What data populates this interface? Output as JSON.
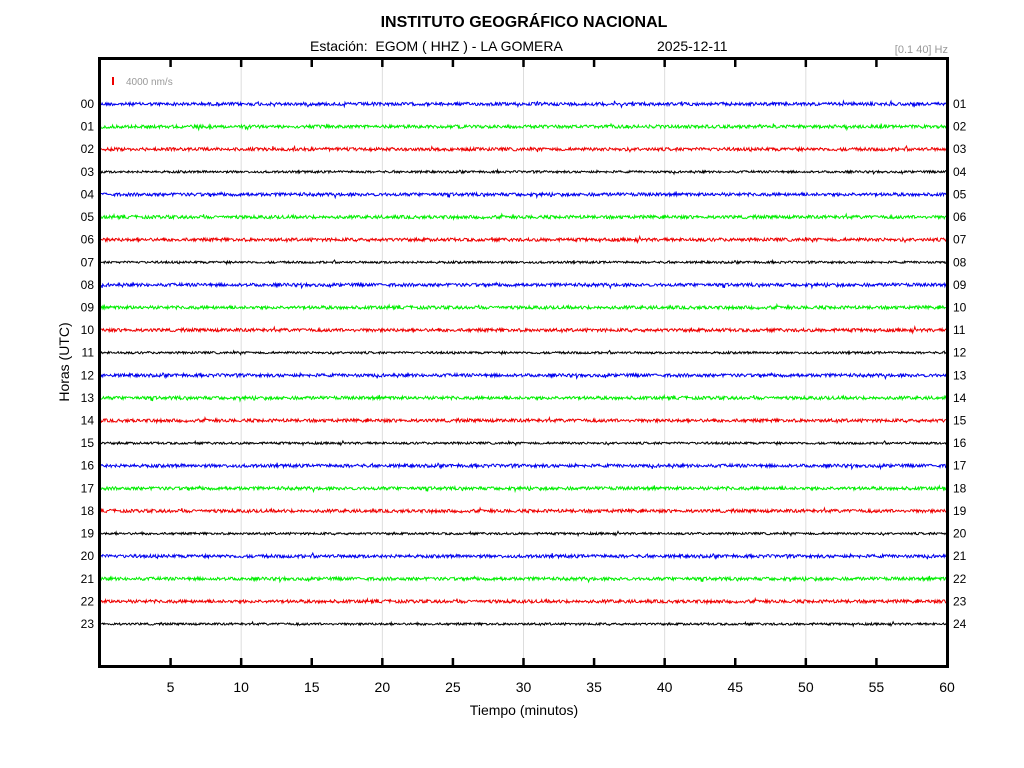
{
  "chart_data": {
    "type": "line",
    "title": "INSTITUTO GEOGRÁFICO NACIONAL",
    "subtitle_station": "Estación:  EGOM ( HHZ ) - LA GOMERA",
    "subtitle_date": "2025-12-11",
    "filter_label": "[0.1 40] Hz",
    "scale_label": "4000 nm/s",
    "xlabel": "Tiempo (minutos)",
    "ylabel": "Horas (UTC)",
    "xlim": [
      0,
      60
    ],
    "x_ticks": [
      5,
      10,
      15,
      20,
      25,
      30,
      35,
      40,
      45,
      50,
      55,
      60
    ],
    "x_major_grid": [
      10,
      20,
      30,
      40,
      50
    ],
    "left_hour_labels": [
      "00",
      "01",
      "02",
      "03",
      "04",
      "05",
      "06",
      "07",
      "08",
      "09",
      "10",
      "11",
      "12",
      "13",
      "14",
      "15",
      "16",
      "17",
      "18",
      "19",
      "20",
      "21",
      "22",
      "23"
    ],
    "right_hour_labels": [
      "01",
      "02",
      "03",
      "04",
      "05",
      "06",
      "07",
      "08",
      "09",
      "10",
      "11",
      "12",
      "13",
      "14",
      "15",
      "16",
      "17",
      "18",
      "19",
      "20",
      "21",
      "22",
      "23",
      "24"
    ],
    "trace_colors": [
      "#0000ee",
      "#00ee00",
      "#ee0000",
      "#000000"
    ],
    "scale_color": "#ee0000",
    "grid": true
  }
}
